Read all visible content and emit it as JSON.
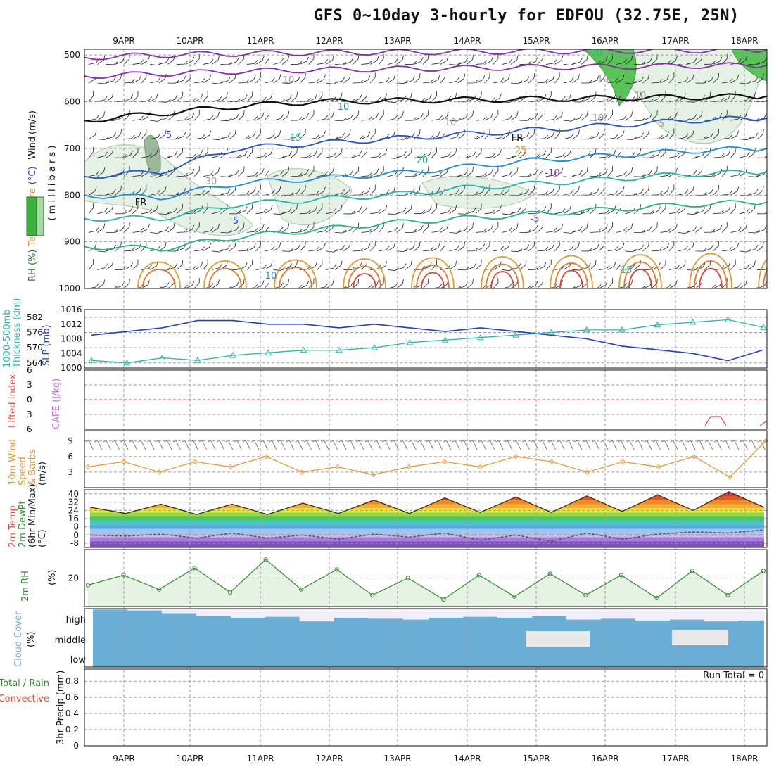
{
  "title": "GFS 0~10day 3-hourly for EDFOU (32.75E, 25N)",
  "dates": [
    "9APR",
    "10APR",
    "11APR",
    "12APR",
    "13APR",
    "14APR",
    "15APR",
    "16APR",
    "17APR",
    "18APR"
  ],
  "colors": {
    "temp_hot": "#e34a33",
    "line_blue": "#1f3fcf",
    "cyan": "#2bb3b3",
    "orange": "#e8932a",
    "green": "#2e8b2e",
    "cloud": "#6aaed6",
    "grid": "#9a9a9a"
  },
  "chart_data": [
    {
      "type": "line",
      "panel": "upper-air",
      "ylabel_parts": [
        "RH (%)",
        "Temperature",
        "(°C)",
        "Wind",
        "(m/s)"
      ],
      "ylabel_sub": "( m i l l i b a r s )",
      "yticks": [
        500,
        600,
        700,
        800,
        900,
        1000
      ],
      "ylim": [
        1000,
        450
      ],
      "contour_labels": [
        "10",
        "5",
        "FR",
        "5",
        "10",
        "15",
        "20",
        "25",
        "-10",
        "-5",
        "FR",
        "5",
        "10",
        "15",
        "20",
        "10",
        "10",
        "10",
        "10",
        "30"
      ],
      "isotherms": [
        {
          "name": "-10",
          "values": [
            505,
            500,
            497,
            495,
            494,
            493,
            492,
            491,
            490,
            489
          ]
        },
        {
          "name": "-5",
          "values": [
            545,
            540,
            535,
            532,
            530,
            528,
            526,
            525,
            523,
            522
          ]
        },
        {
          "name": "FR",
          "values": [
            640,
            625,
            610,
            600,
            598,
            596,
            594,
            592,
            590,
            588
          ]
        },
        {
          "name": "5",
          "values": [
            760,
            750,
            700,
            690,
            680,
            670,
            660,
            650,
            640,
            635
          ]
        },
        {
          "name": "10",
          "values": [
            800,
            805,
            775,
            765,
            755,
            740,
            725,
            715,
            705,
            700
          ]
        },
        {
          "name": "15",
          "values": [
            850,
            850,
            820,
            810,
            800,
            785,
            775,
            765,
            755,
            750
          ]
        },
        {
          "name": "20",
          "values": [
            910,
            915,
            890,
            875,
            860,
            850,
            840,
            830,
            820,
            815
          ]
        }
      ]
    },
    {
      "type": "line",
      "panel": "slp-thickness",
      "ylabel_left": [
        "1000-500mb",
        "Thickness (dm)"
      ],
      "ylabel_right": "SLP (mb)",
      "yticks_left": [
        564,
        570,
        576,
        582
      ],
      "yticks_right": [
        1000,
        1004,
        1008,
        1012,
        1016
      ],
      "series": [
        {
          "name": "SLP (mb)",
          "axis": "right",
          "values": [
            1009,
            1010,
            1011,
            1013,
            1013,
            1012,
            1012,
            1011,
            1012,
            1011,
            1010,
            1011,
            1010,
            1009,
            1008,
            1006,
            1005,
            1004,
            1002,
            1005
          ]
        },
        {
          "name": "1000-500mb Thickness (dm)",
          "axis": "left",
          "values": [
            565,
            564,
            566,
            565,
            567,
            568,
            569,
            569,
            570,
            572,
            573,
            574,
            575,
            576,
            577,
            577,
            579,
            580,
            581,
            578
          ]
        }
      ]
    },
    {
      "type": "line",
      "panel": "stability",
      "ylabel_parts": [
        "Lifted Index",
        "CAPE (J/kg)"
      ],
      "yticks": [
        -6,
        -3,
        0,
        3,
        6
      ],
      "ylim": [
        -6,
        6
      ],
      "series": [
        {
          "name": "Lifted Index",
          "x": [
            17.5,
            17.6,
            17.7
          ],
          "values": [
            3.5,
            3.5,
            4.5
          ]
        }
      ]
    },
    {
      "type": "line",
      "panel": "surface-wind",
      "ylabel_parts": [
        "10m Wind",
        "Speed",
        "& Barbs",
        "(m/s)"
      ],
      "yticks": [
        3,
        6,
        9
      ],
      "ylim": [
        0,
        11
      ],
      "series": [
        {
          "name": "10m Wind Speed",
          "values": [
            4,
            5,
            3,
            5,
            4,
            6,
            3,
            4,
            2.5,
            4,
            5,
            4,
            6,
            5,
            3,
            5,
            4,
            6,
            2,
            9
          ]
        }
      ]
    },
    {
      "type": "area",
      "panel": "temperature",
      "ylabel_parts": [
        "2m Temp",
        "2m DewPt",
        "(6hr Min/Max)",
        "(°C)"
      ],
      "yticks": [
        -8,
        0,
        8,
        16,
        24,
        32,
        40
      ],
      "ylim": [
        -12,
        44
      ],
      "series": [
        {
          "name": "2m Temp",
          "values": [
            27,
            21,
            30,
            20,
            30,
            20,
            31,
            21,
            34,
            21,
            36,
            22,
            37,
            22,
            38,
            23,
            39,
            24,
            42,
            27
          ]
        },
        {
          "name": "2m DewPt",
          "values": [
            0,
            -1,
            1,
            -3,
            2,
            -3,
            0,
            -4,
            1,
            -2,
            2,
            -5,
            0,
            -6,
            2,
            -4,
            1,
            3,
            2,
            5
          ]
        }
      ]
    },
    {
      "type": "area",
      "panel": "relative-humidity",
      "ylabel_parts": [
        "2m RH",
        "(%)"
      ],
      "yticks": [
        20
      ],
      "ylim": [
        0,
        40
      ],
      "series": [
        {
          "name": "2m RH",
          "values": [
            15,
            22,
            12,
            27,
            10,
            33,
            12,
            26,
            8,
            20,
            5,
            22,
            7,
            23,
            8,
            22,
            6,
            25,
            8,
            25
          ]
        }
      ]
    },
    {
      "type": "area",
      "panel": "cloud-cover",
      "ylabel": "Cloud Cover (%)",
      "yticks": [
        "low",
        "middle",
        "high"
      ],
      "series": [
        {
          "name": "high",
          "values": [
            95,
            90,
            75,
            60,
            50,
            55,
            30,
            50,
            45,
            40,
            50,
            55,
            50,
            60,
            40,
            45,
            35,
            40,
            30,
            35
          ]
        }
      ]
    },
    {
      "type": "bar",
      "panel": "precipitation",
      "ylabel_parts": [
        "Total / Rain",
        "Convective",
        "3hr Precip (mm)"
      ],
      "yticks": [
        0,
        0.2,
        0.4,
        0.6,
        0.8
      ],
      "ylim": [
        0,
        0.95
      ],
      "annotation": "Run Total = 0",
      "values": [
        0,
        0,
        0,
        0,
        0,
        0,
        0,
        0,
        0,
        0
      ]
    }
  ]
}
